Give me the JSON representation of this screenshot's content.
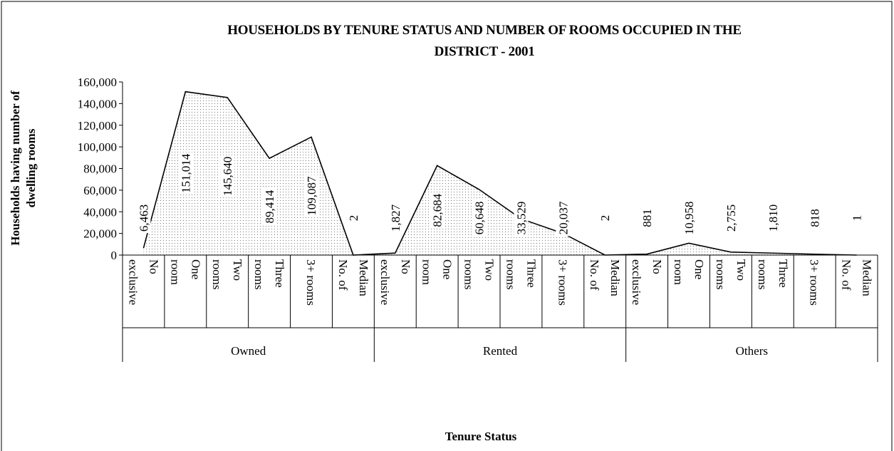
{
  "chart_data": {
    "type": "area",
    "title": "HOUSEHOLDS BY TENURE STATUS AND NUMBER OF ROOMS OCCUPIED IN THE\nDISTRICT - 2001",
    "y_label": "Households having number of\ndwelling rooms",
    "x_label": "Tenure Status",
    "groups": [
      "Owned",
      "Rented",
      "Others"
    ],
    "categories": [
      "No\nexclusive",
      "One\nroom",
      "Two\nrooms",
      "Three\nrooms",
      "3+ rooms",
      "Median\nNo. of",
      "No\nexclusive",
      "One\nroom",
      "Two\nrooms",
      "Three\nrooms",
      "3+ rooms",
      "Median\nNo. of",
      "No\nexclusive",
      "One\nroom",
      "Two\nrooms",
      "Three\nrooms",
      "3+ rooms",
      "Median\nNo. of"
    ],
    "values": [
      6463,
      151014,
      145640,
      89414,
      109087,
      2,
      1827,
      82684,
      60648,
      33529,
      20037,
      2,
      881,
      10958,
      2755,
      1810,
      818,
      1
    ],
    "value_labels": [
      "6,463",
      "151,014",
      "145,640",
      "89,414",
      "109,087",
      "2",
      "1,827",
      "82,684",
      "60,648",
      "33,529",
      "20,037",
      "2",
      "881",
      "10,958",
      "2,755",
      "1,810",
      "818",
      "1"
    ],
    "color": "#000000",
    "ylim": [
      0,
      160000
    ],
    "yticks": [
      0,
      {
        "value": 20000,
        "label": "20,000"
      },
      {
        "value": 40000,
        "label": "40,000"
      },
      {
        "value": 60000,
        "label": "60,000"
      },
      {
        "value": 80000,
        "label": "80,000"
      },
      {
        "value": 100000,
        "label": "100,000"
      },
      {
        "value": 120000,
        "label": "120,000"
      },
      {
        "value": 140000,
        "label": "140,000"
      },
      {
        "value": 160000,
        "label": "160,000"
      }
    ]
  }
}
